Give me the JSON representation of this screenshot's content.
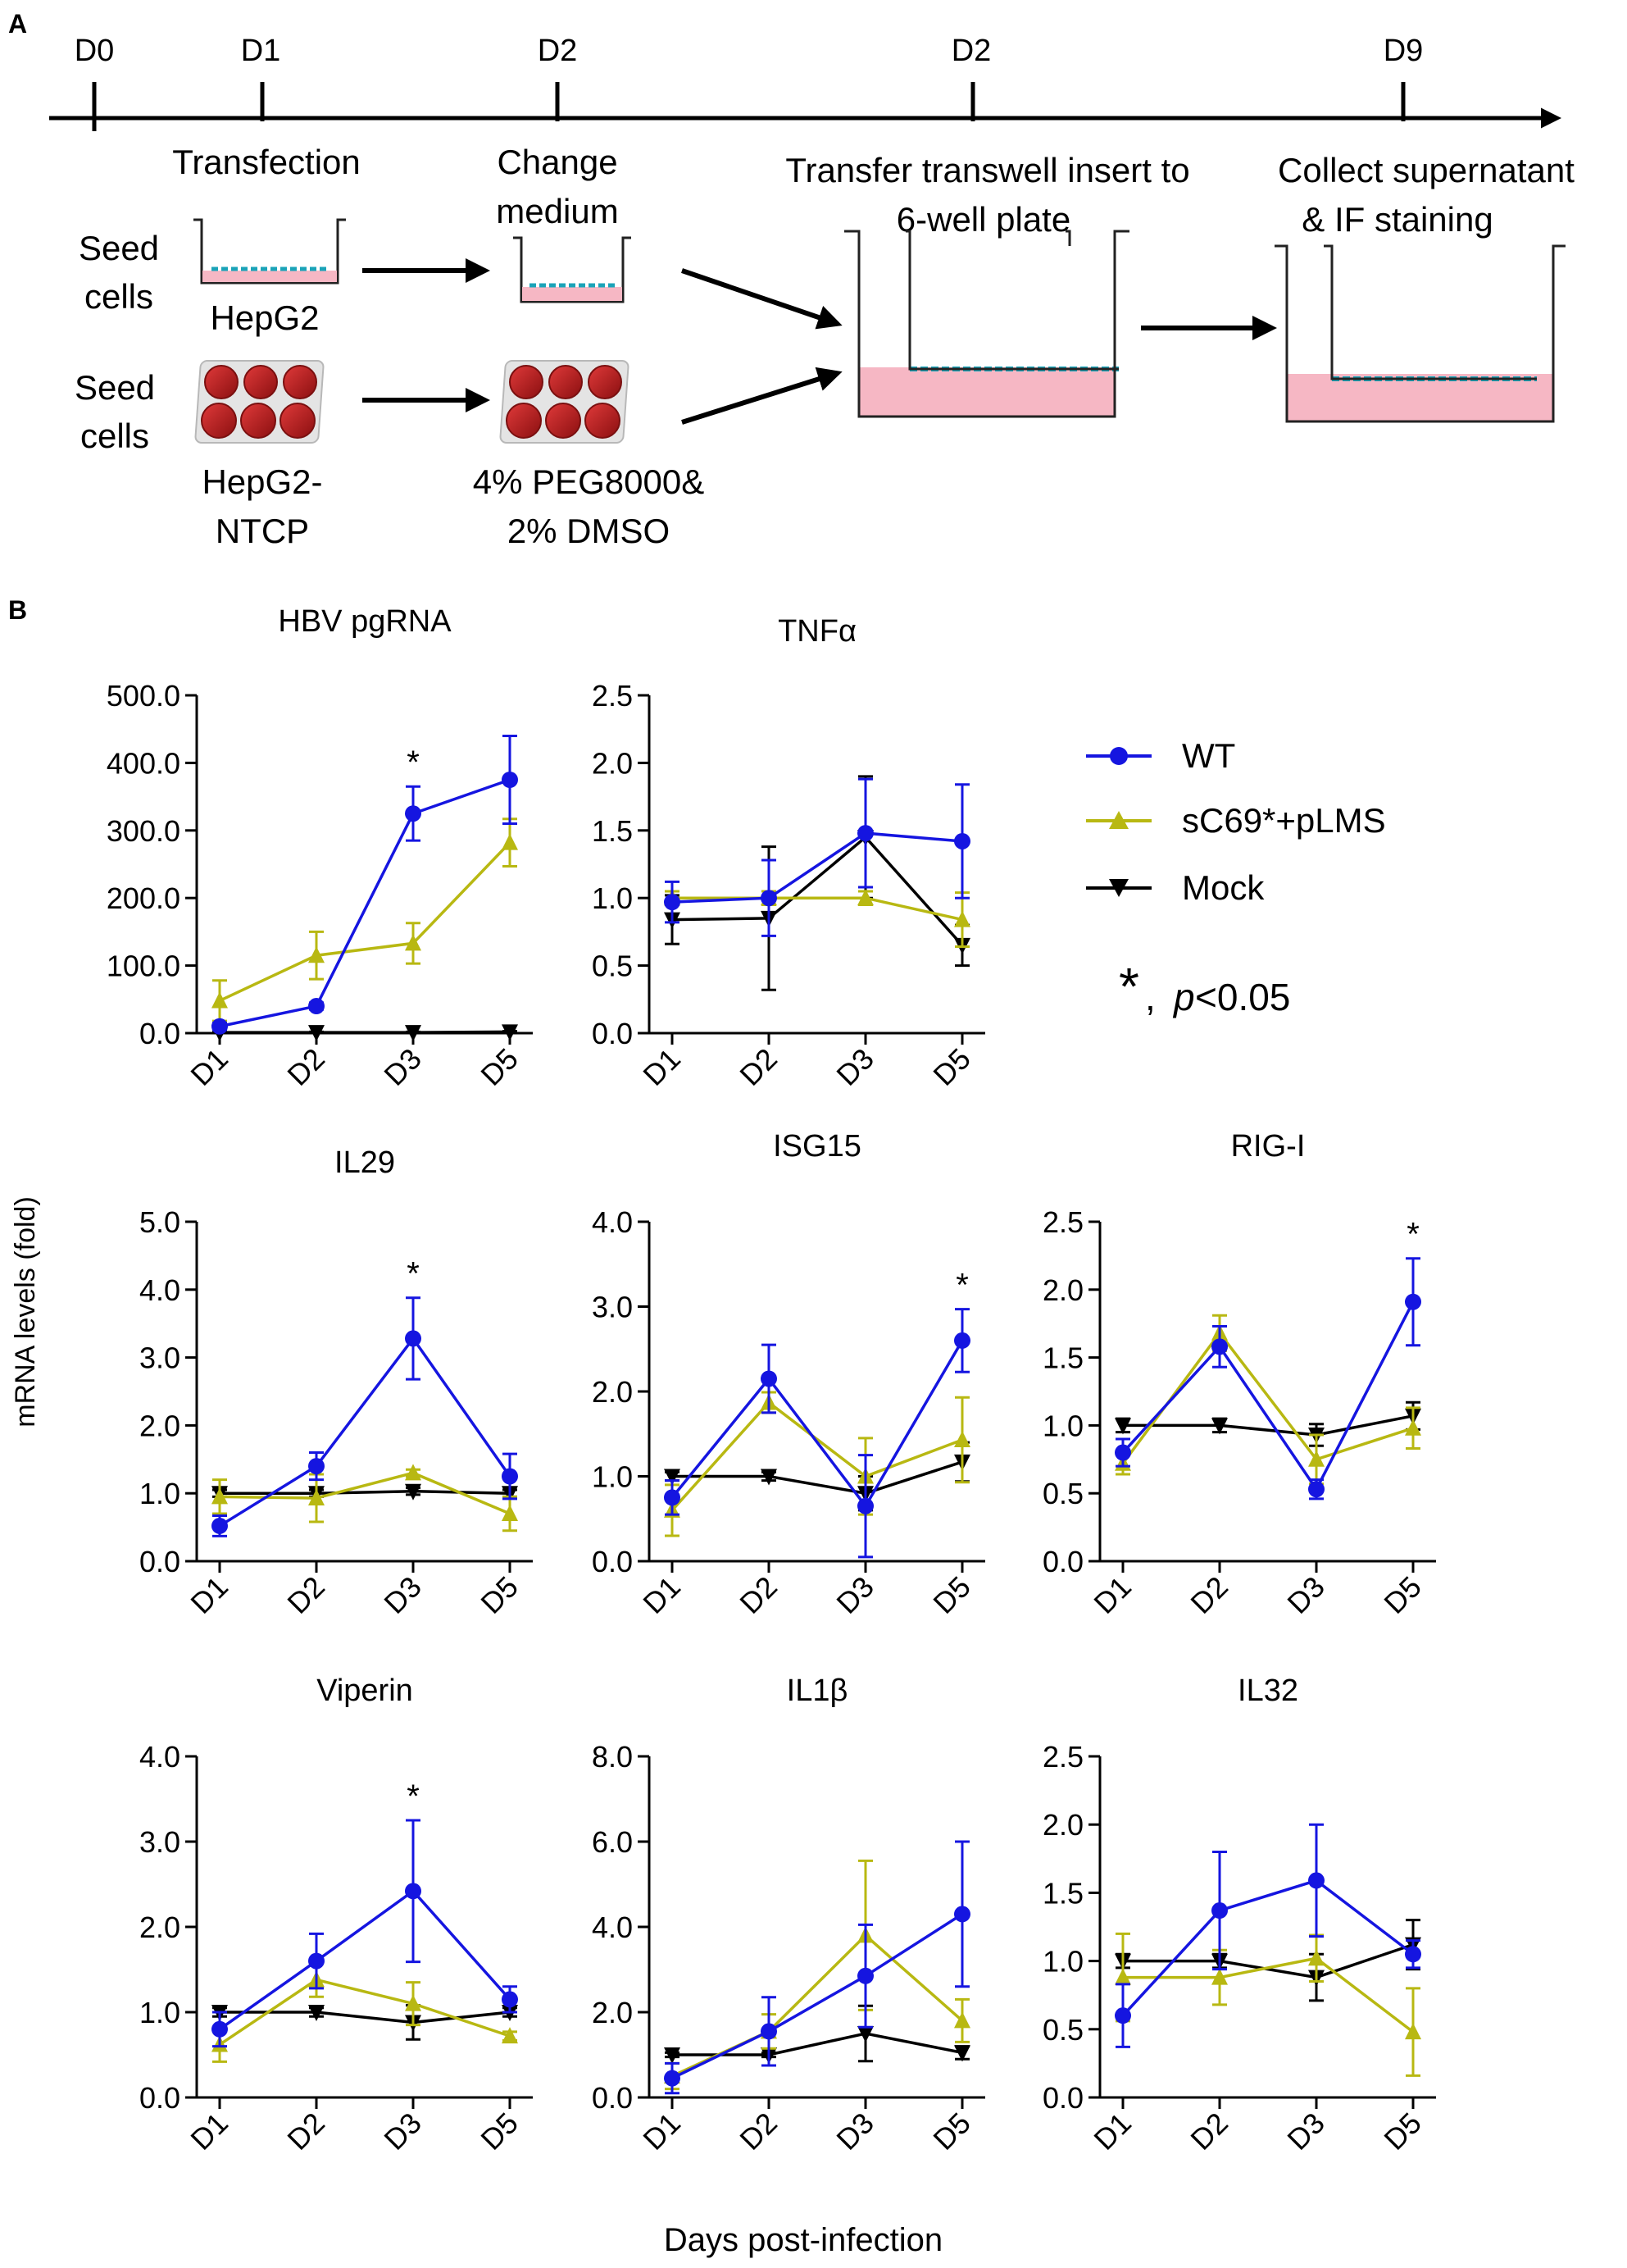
{
  "figure": {
    "panel_a": {
      "label": "A",
      "timeline": [
        "D0",
        "D1",
        "D2",
        "D2",
        "D9"
      ],
      "steps": {
        "transfection": "Transfection",
        "change_medium": [
          "Change",
          "medium"
        ],
        "transfer": [
          "Transfer  transwell  insert to",
          "6-well plate"
        ],
        "collect": [
          "Collect supernatant",
          "& IF staining"
        ],
        "seed_cells": [
          "Seed",
          "cells"
        ],
        "hepg2": "HepG2",
        "hepg2_ntcp": [
          "HepG2-",
          "NTCP"
        ],
        "peg_dmso": [
          "4% PEG8000&",
          "2% DMSO"
        ]
      }
    },
    "panel_b": {
      "label": "B",
      "y_axis_label": "mRNA levels (fold)",
      "x_axis_label": "Days post-infection"
    },
    "legend": {
      "entries": [
        {
          "name": "WT",
          "color": "#1515e0",
          "marker": "circle"
        },
        {
          "name": "sC69*+pLMS",
          "color": "#b8b812",
          "marker": "triangle-up"
        },
        {
          "name": "Mock",
          "color": "#000000",
          "marker": "triangle-down"
        }
      ],
      "significance_star": "*",
      "significance_p": "p",
      "significance_threshold": "<0.05"
    }
  },
  "chart_data": [
    {
      "type": "line",
      "title": "HBV pgRNA",
      "categories": [
        "D1",
        "D2",
        "D3",
        "D5"
      ],
      "ylim": [
        0,
        500
      ],
      "ticks": [
        "0.0",
        "100.0",
        "200.0",
        "300.0",
        "400.0",
        "500.0"
      ],
      "star": "*",
      "star_index": 2,
      "series": [
        {
          "name": "WT",
          "values": [
            10,
            40,
            325,
            375
          ],
          "errors": [
            5,
            5,
            40,
            65
          ]
        },
        {
          "name": "sC69*+pLMS",
          "values": [
            48,
            115,
            133,
            282
          ],
          "errors": [
            30,
            35,
            30,
            35
          ]
        },
        {
          "name": "Mock",
          "values": [
            1,
            1,
            1,
            2
          ],
          "errors": [
            1,
            1,
            1,
            1
          ]
        }
      ]
    },
    {
      "type": "line",
      "title": "TNFα",
      "categories": [
        "D1",
        "D2",
        "D3",
        "D5"
      ],
      "ylim": [
        0,
        2.5
      ],
      "ticks": [
        "0.0",
        "0.5",
        "1.0",
        "1.5",
        "2.0",
        "2.5"
      ],
      "star": "",
      "star_index": -1,
      "series": [
        {
          "name": "WT",
          "values": [
            0.97,
            1.0,
            1.48,
            1.42
          ],
          "errors": [
            0.15,
            0.28,
            0.4,
            0.42
          ]
        },
        {
          "name": "sC69*+pLMS",
          "values": [
            1.0,
            1.0,
            1.0,
            0.84
          ],
          "errors": [
            0.05,
            0.05,
            0.05,
            0.2
          ]
        },
        {
          "name": "Mock",
          "values": [
            0.84,
            0.85,
            1.45,
            0.65
          ],
          "errors": [
            0.18,
            0.53,
            0.45,
            0.15
          ]
        }
      ]
    },
    {
      "type": "line",
      "title": "IL29",
      "categories": [
        "D1",
        "D2",
        "D3",
        "D5"
      ],
      "ylim": [
        0,
        5
      ],
      "ticks": [
        "0.0",
        "1.0",
        "2.0",
        "3.0",
        "4.0",
        "5.0"
      ],
      "star": "*",
      "star_index": 2,
      "series": [
        {
          "name": "WT",
          "values": [
            0.52,
            1.4,
            3.28,
            1.25
          ],
          "errors": [
            0.15,
            0.2,
            0.6,
            0.33
          ]
        },
        {
          "name": "sC69*+pLMS",
          "values": [
            0.95,
            0.93,
            1.3,
            0.7
          ],
          "errors": [
            0.25,
            0.35,
            0.05,
            0.25
          ]
        },
        {
          "name": "Mock",
          "values": [
            1.0,
            1.0,
            1.03,
            1.0
          ],
          "errors": [
            0.05,
            0.05,
            0.05,
            0.05
          ]
        }
      ]
    },
    {
      "type": "line",
      "title": "ISG15",
      "categories": [
        "D1",
        "D2",
        "D3",
        "D5"
      ],
      "ylim": [
        0,
        4
      ],
      "ticks": [
        "0.0",
        "1.0",
        "2.0",
        "3.0",
        "4.0"
      ],
      "star": "*",
      "star_index": 3,
      "series": [
        {
          "name": "WT",
          "values": [
            0.75,
            2.15,
            0.65,
            2.6
          ],
          "errors": [
            0.2,
            0.4,
            0.6,
            0.37
          ]
        },
        {
          "name": "sC69*+pLMS",
          "values": [
            0.6,
            1.87,
            1.0,
            1.43
          ],
          "errors": [
            0.3,
            0.12,
            0.45,
            0.5
          ]
        },
        {
          "name": "Mock",
          "values": [
            1.0,
            1.0,
            0.8,
            1.17
          ],
          "errors": [
            0.05,
            0.05,
            0.2,
            0.23
          ]
        }
      ]
    },
    {
      "type": "line",
      "title": "RIG-I",
      "categories": [
        "D1",
        "D2",
        "D3",
        "D5"
      ],
      "ylim": [
        0,
        2.5
      ],
      "ticks": [
        "0.0",
        "0.5",
        "1.0",
        "1.5",
        "2.0",
        "2.5"
      ],
      "star": "*",
      "star_index": 3,
      "series": [
        {
          "name": "WT",
          "values": [
            0.8,
            1.58,
            0.53,
            1.91
          ],
          "errors": [
            0.1,
            0.15,
            0.07,
            0.32
          ]
        },
        {
          "name": "sC69*+pLMS",
          "values": [
            0.72,
            1.68,
            0.75,
            0.98
          ],
          "errors": [
            0.08,
            0.13,
            0.18,
            0.15
          ]
        },
        {
          "name": "Mock",
          "values": [
            1.0,
            1.0,
            0.93,
            1.07
          ],
          "errors": [
            0.05,
            0.05,
            0.08,
            0.1
          ]
        }
      ]
    },
    {
      "type": "line",
      "title": "Viperin",
      "categories": [
        "D1",
        "D2",
        "D3",
        "D5"
      ],
      "ylim": [
        0,
        4
      ],
      "ticks": [
        "0.0",
        "1.0",
        "2.0",
        "3.0",
        "4.0"
      ],
      "star": "*",
      "star_index": 2,
      "series": [
        {
          "name": "WT",
          "values": [
            0.8,
            1.6,
            2.42,
            1.15
          ],
          "errors": [
            0.2,
            0.32,
            0.83,
            0.15
          ]
        },
        {
          "name": "sC69*+pLMS",
          "values": [
            0.62,
            1.38,
            1.1,
            0.72
          ],
          "errors": [
            0.2,
            0.2,
            0.25,
            0.05
          ]
        },
        {
          "name": "Mock",
          "values": [
            1.0,
            1.0,
            0.88,
            1.0
          ],
          "errors": [
            0.05,
            0.05,
            0.2,
            0.05
          ]
        }
      ]
    },
    {
      "type": "line",
      "title": "IL1β",
      "categories": [
        "D1",
        "D2",
        "D3",
        "D5"
      ],
      "ylim": [
        0,
        8
      ],
      "ticks": [
        "0.0",
        "2.0",
        "4.0",
        "6.0",
        "8.0"
      ],
      "star": "",
      "star_index": -1,
      "series": [
        {
          "name": "WT",
          "values": [
            0.45,
            1.55,
            2.85,
            4.3
          ],
          "errors": [
            0.35,
            0.8,
            1.2,
            1.7
          ]
        },
        {
          "name": "sC69*+pLMS",
          "values": [
            0.5,
            1.55,
            3.8,
            1.8
          ],
          "errors": [
            0.3,
            0.4,
            1.75,
            0.5
          ]
        },
        {
          "name": "Mock",
          "values": [
            1.0,
            1.0,
            1.5,
            1.05
          ],
          "errors": [
            0.05,
            0.05,
            0.65,
            0.15
          ]
        }
      ]
    },
    {
      "type": "line",
      "title": "IL32",
      "categories": [
        "D1",
        "D2",
        "D3",
        "D5"
      ],
      "ylim": [
        0,
        2.5
      ],
      "ticks": [
        "0.0",
        "0.5",
        "1.0",
        "1.5",
        "2.0",
        "2.5"
      ],
      "star": "",
      "star_index": -1,
      "series": [
        {
          "name": "WT",
          "values": [
            0.6,
            1.37,
            1.59,
            1.05
          ],
          "errors": [
            0.23,
            0.43,
            0.41,
            0.1
          ]
        },
        {
          "name": "sC69*+pLMS",
          "values": [
            0.88,
            0.88,
            1.02,
            0.48
          ],
          "errors": [
            0.32,
            0.2,
            0.17,
            0.32
          ]
        },
        {
          "name": "Mock",
          "values": [
            1.0,
            1.0,
            0.88,
            1.12
          ],
          "errors": [
            0.05,
            0.05,
            0.17,
            0.18
          ]
        }
      ]
    }
  ]
}
